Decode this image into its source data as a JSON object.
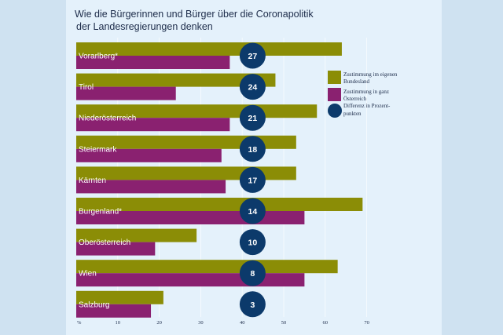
{
  "chart_data": {
    "type": "bar",
    "title_line1": "Wie die Bürgerinnen und Bürger über die Coronapolitik",
    "title_line2": "der Landesregierungen denken",
    "categories": [
      "Vorarlberg*",
      "Tirol",
      "Niederösterreich",
      "Steiermark",
      "Kärnten",
      "Burgenland*",
      "Oberösterreich",
      "Wien",
      "Salzburg"
    ],
    "series": [
      {
        "name": "Zustimmung im eigenen Bundesland",
        "values": [
          64,
          48,
          58,
          53,
          53,
          69,
          29,
          63,
          21
        ],
        "color": "#8b8d06"
      },
      {
        "name": "Zustimmung in ganz Österreich",
        "values": [
          37,
          24,
          37,
          35,
          36,
          55,
          19,
          55,
          18
        ],
        "color": "#8a2170"
      }
    ],
    "differences": [
      27,
      24,
      21,
      18,
      17,
      14,
      10,
      8,
      3
    ],
    "difference_legend": "Differenz in Prozent-punkten",
    "difference_color": "#0c3a6b",
    "legend": {
      "series1_lines": [
        "Zustimmung im eigenen",
        "Bundesland"
      ],
      "series2_lines": [
        "Zustimmung in ganz",
        "Österreich"
      ],
      "diff_lines": [
        "Differenz in Prozent-",
        "punkten"
      ]
    },
    "xlim": [
      0,
      70
    ],
    "ticks": [
      "%",
      "10",
      "20",
      "30",
      "40",
      "50",
      "60",
      "70"
    ],
    "tick_values": [
      0,
      10,
      20,
      30,
      40,
      50,
      60,
      70
    ],
    "grid": true,
    "legend_position": "right"
  }
}
